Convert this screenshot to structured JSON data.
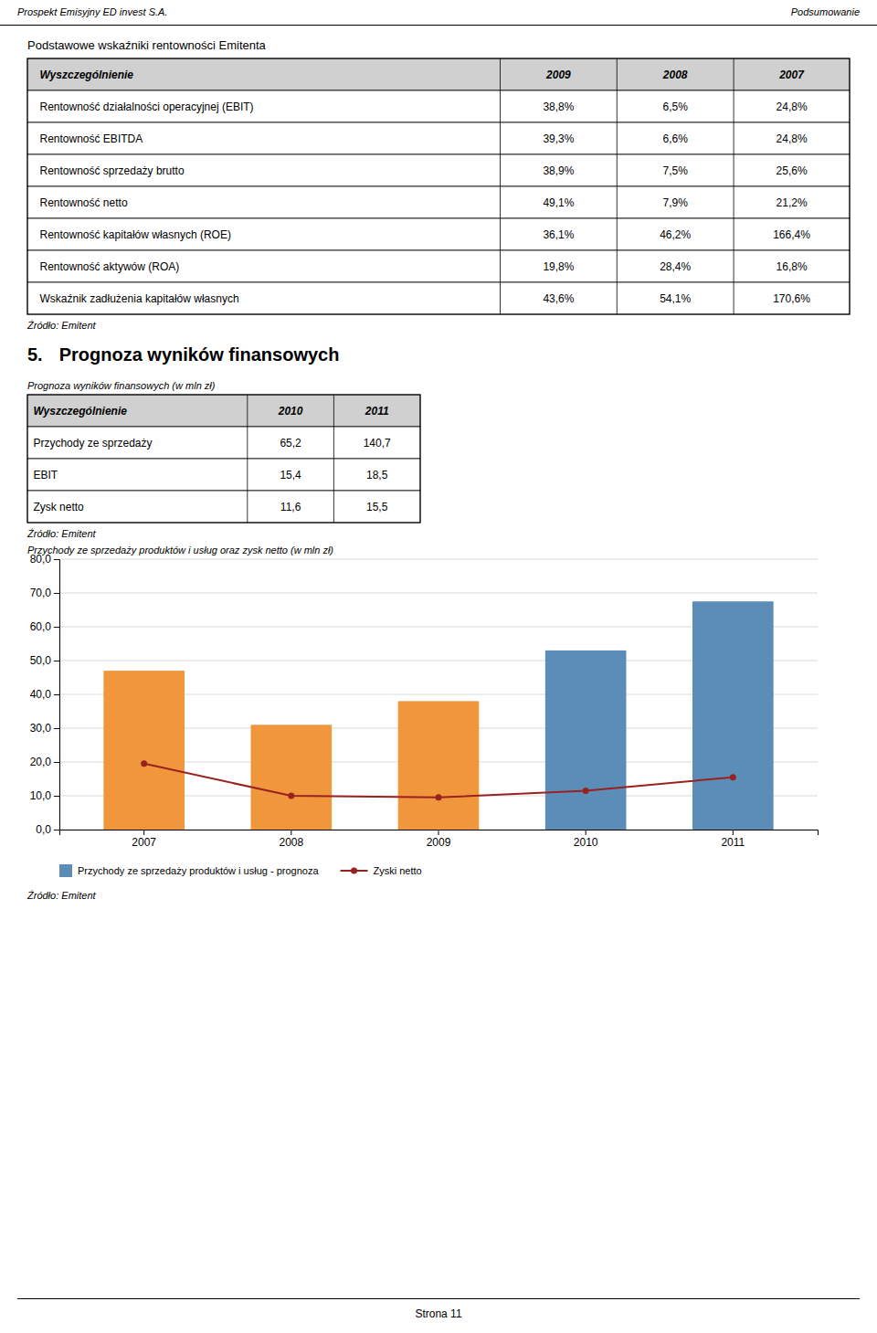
{
  "header_left": "Prospekt Emisyjny ED invest S.A.",
  "header_right": "Podsumowanie",
  "section1_title": "Podstawowe wskaźniki rentowności Emitenta",
  "table1": {
    "header": [
      "Wyszczególnienie",
      "2009",
      "2008",
      "2007"
    ],
    "rows": [
      [
        "Rentowność działalności operacyjnej (EBIT)",
        "38,8%",
        "6,5%",
        "24,8%"
      ],
      [
        "Rentowność EBITDA",
        "39,3%",
        "6,6%",
        "24,8%"
      ],
      [
        "Rentowność sprzedaży brutto",
        "38,9%",
        "7,5%",
        "25,6%"
      ],
      [
        "Rentowność netto",
        "49,1%",
        "7,9%",
        "21,2%"
      ],
      [
        "Rentowność kapitałów własnych (ROE)",
        "36,1%",
        "46,2%",
        "166,4%"
      ],
      [
        "Rentowność aktywów (ROA)",
        "19,8%",
        "28,4%",
        "16,8%"
      ],
      [
        "Wskaźnik zadłużenia kapitałów własnych",
        "43,6%",
        "54,1%",
        "170,6%"
      ]
    ]
  },
  "source1": "Źródło: Emitent",
  "section2_number": "5.",
  "section2_title": "Prognoza wyników finansowych",
  "table2_caption": "Prognoza wyników finansowych (w mln zł)",
  "table2": {
    "header": [
      "Wyszczególnienie",
      "2010",
      "2011"
    ],
    "rows": [
      [
        "Przychody ze sprzedaży",
        "65,2",
        "140,7"
      ],
      [
        "EBIT",
        "15,4",
        "18,5"
      ],
      [
        "Zysk netto",
        "11,6",
        "15,5"
      ]
    ]
  },
  "source2": "Źródło: Emitent",
  "chart_data": {
    "type": "bar",
    "title": "Przychody ze sprzedaży produktów i usług oraz zysk netto (w mln zł)",
    "categories": [
      "2007",
      "2008",
      "2009",
      "2010",
      "2011"
    ],
    "series": [
      {
        "name": "Przychody ze sprzedaży produktów i usług - prognoza",
        "type": "bar",
        "colors": [
          "#F0963C",
          "#F0963C",
          "#F0963C",
          "#5B8DB8",
          "#5B8DB8"
        ],
        "values": [
          47.0,
          31.0,
          38.0,
          53.0,
          67.5
        ]
      },
      {
        "name": "Zyski netto",
        "type": "line",
        "color": "#9B2020",
        "marker": "circle",
        "values": [
          19.5,
          10.0,
          9.5,
          11.5,
          15.5
        ]
      }
    ],
    "ylim": [
      0,
      80
    ],
    "yticks": [
      {
        "value": 0,
        "label": "0,0"
      },
      {
        "value": 10,
        "label": "10,0"
      },
      {
        "value": 20,
        "label": "20,0"
      },
      {
        "value": 30,
        "label": "30,0"
      },
      {
        "value": 40,
        "label": "40,0"
      },
      {
        "value": 50,
        "label": "50,0"
      },
      {
        "value": 60,
        "label": "60,0"
      },
      {
        "value": 70,
        "label": "70,0"
      },
      {
        "value": 80,
        "label": "80,0"
      }
    ],
    "grid": true,
    "legend": "bottom"
  },
  "source3": "Źródło: Emitent",
  "footer": "Strona 11"
}
